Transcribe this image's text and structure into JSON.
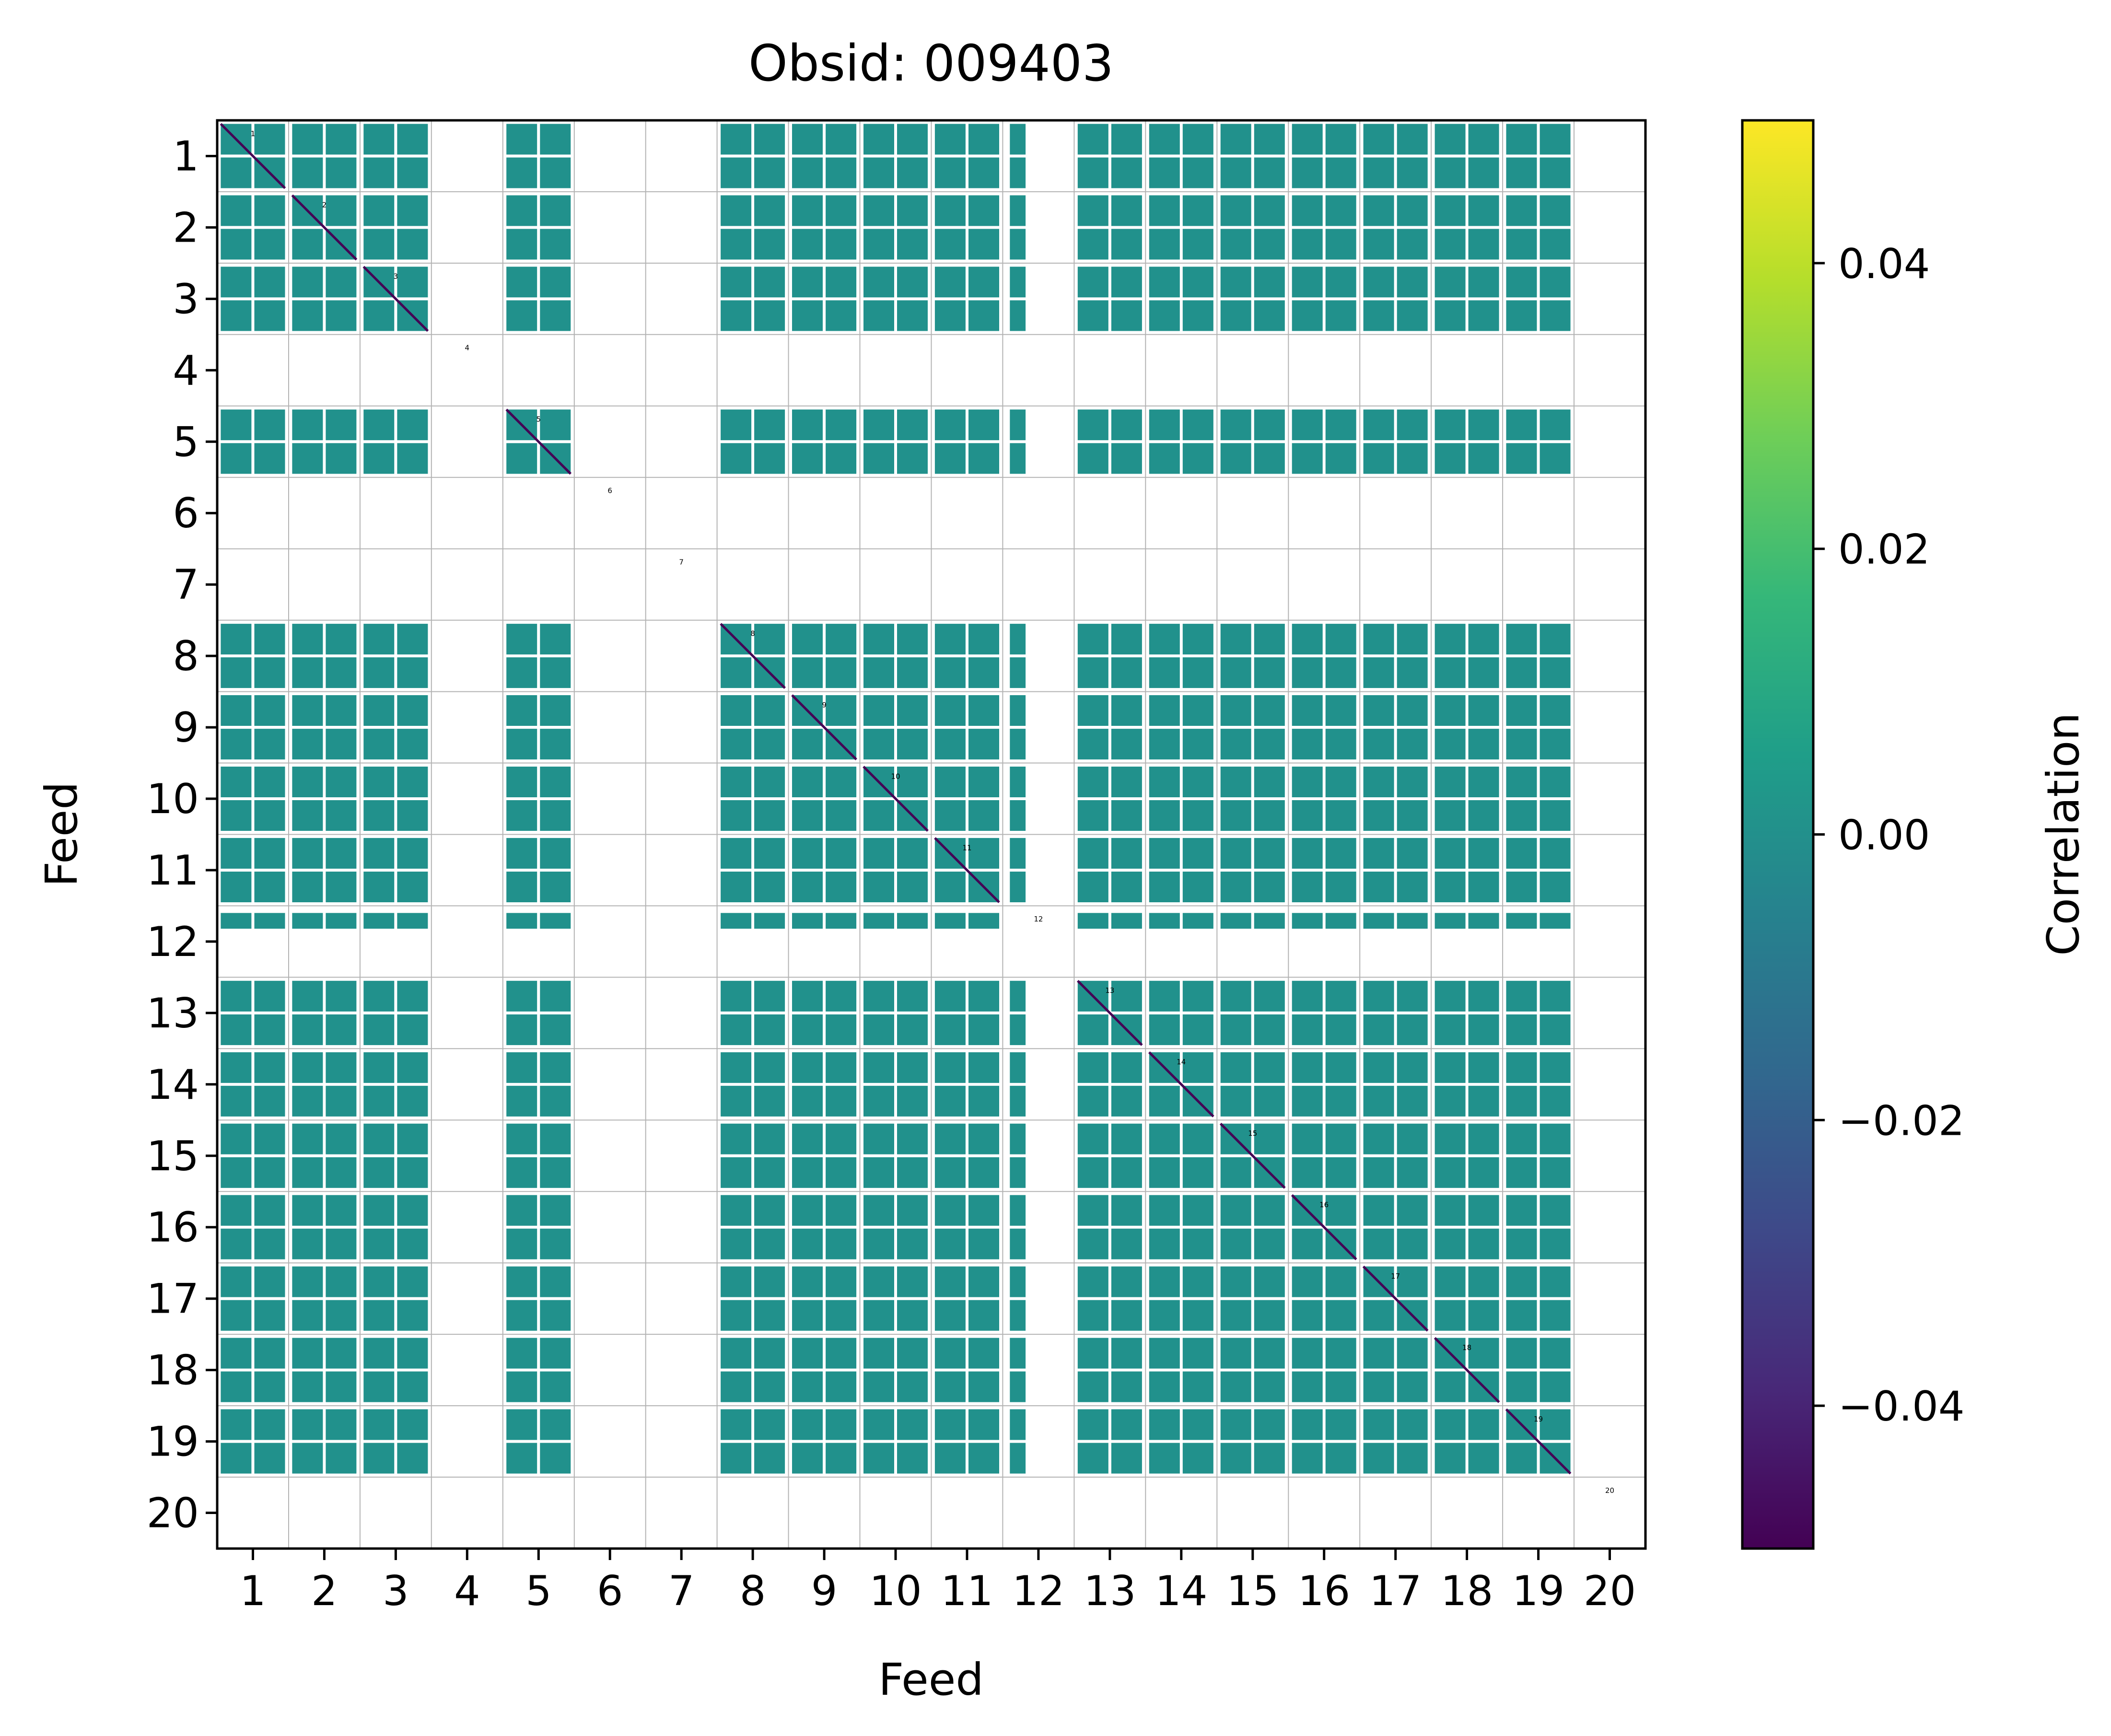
{
  "chart_data": {
    "type": "heatmap",
    "title": "Obsid: 009403",
    "xlabel": "Feed",
    "ylabel": "Feed",
    "feeds": [
      1,
      2,
      3,
      4,
      5,
      6,
      7,
      8,
      9,
      10,
      11,
      12,
      13,
      14,
      15,
      16,
      17,
      18,
      19,
      20
    ],
    "tick_labels": [
      "1",
      "2",
      "3",
      "4",
      "5",
      "6",
      "7",
      "8",
      "9",
      "10",
      "11",
      "12",
      "13",
      "14",
      "15",
      "16",
      "17",
      "18",
      "19",
      "20"
    ],
    "feed_markers": [
      "1",
      "2",
      "3",
      "4",
      "5",
      "6",
      "7",
      "8",
      "9",
      "10",
      "11",
      "12",
      "13",
      "14",
      "15",
      "16",
      "17",
      "18",
      "19",
      "20"
    ],
    "inactive_feeds": [
      4,
      6,
      7,
      20
    ],
    "partial_feeds": [
      12
    ],
    "block_value": 0.0,
    "diagonal_value": -0.05,
    "grid": true,
    "colorbar": {
      "label": "Correlation",
      "colormap": "viridis",
      "range": [
        -0.05,
        0.05
      ],
      "ticks": [
        -0.04,
        -0.02,
        0.0,
        0.02,
        0.04
      ],
      "tick_labels": [
        "−0.04",
        "−0.02",
        "0.00",
        "0.02",
        "0.04"
      ]
    },
    "colors": {
      "block": "#21918c",
      "diagonal": "#440154",
      "colormap_stops": [
        "#440154",
        "#482878",
        "#3e4989",
        "#31688e",
        "#26828e",
        "#1f9e89",
        "#35b779",
        "#6ece58",
        "#b5de2b",
        "#fde725"
      ]
    }
  }
}
